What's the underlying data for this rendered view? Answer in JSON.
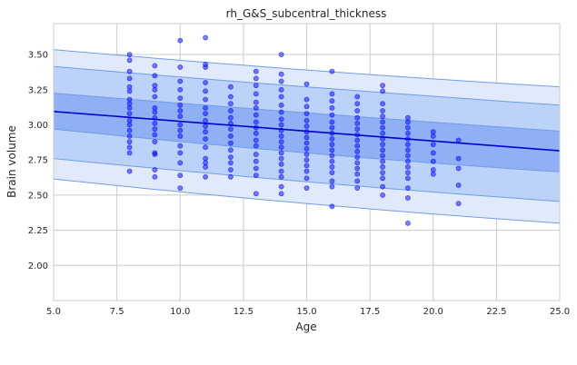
{
  "chart_data": {
    "type": "scatter",
    "title": "rh_G&S_subcentral_thickness",
    "xlabel": "Age",
    "ylabel": "Brain volume",
    "xlim": [
      5.0,
      25.0
    ],
    "ylim": [
      1.75,
      3.72
    ],
    "x_ticks": [
      "5.0",
      "7.5",
      "10.0",
      "12.5",
      "15.0",
      "17.5",
      "20.0",
      "22.5",
      "25.0"
    ],
    "y_ticks": [
      "2.00",
      "2.25",
      "2.50",
      "2.75",
      "3.00",
      "3.25",
      "3.50"
    ],
    "grid": true,
    "colors": {
      "points": "#0000ff",
      "mean_line": "#0000cd",
      "band_inner": "#8fb0f5",
      "band_middle": "#bcd2f8",
      "band_outer": "#e1eafb",
      "band_edge": "#6f9ee6",
      "grid": "#cccccc",
      "frame": "#cccccc"
    },
    "mean_line": {
      "x": [
        5,
        25
      ],
      "y": [
        3.095,
        2.815
      ]
    },
    "bands": [
      {
        "name": "outer",
        "upper": [
          [
            5,
            3.535
          ],
          [
            15,
            3.39
          ],
          [
            25,
            3.27
          ]
        ],
        "lower": [
          [
            5,
            2.615
          ],
          [
            15,
            2.44
          ],
          [
            25,
            2.3
          ]
        ]
      },
      {
        "name": "middle",
        "upper": [
          [
            5,
            3.415
          ],
          [
            15,
            3.27
          ],
          [
            25,
            3.14
          ]
        ],
        "lower": [
          [
            5,
            2.76
          ],
          [
            15,
            2.595
          ],
          [
            25,
            2.455
          ]
        ]
      },
      {
        "name": "inner",
        "upper": [
          [
            5,
            3.225
          ],
          [
            15,
            3.085
          ],
          [
            25,
            2.955
          ]
        ],
        "lower": [
          [
            5,
            2.97
          ],
          [
            15,
            2.8
          ],
          [
            25,
            2.665
          ]
        ]
      }
    ],
    "points": [
      {
        "x": 8,
        "y": 3.5
      },
      {
        "x": 8,
        "y": 3.46
      },
      {
        "x": 8,
        "y": 3.38
      },
      {
        "x": 8,
        "y": 3.33
      },
      {
        "x": 8,
        "y": 3.27
      },
      {
        "x": 8,
        "y": 3.24
      },
      {
        "x": 8,
        "y": 3.18
      },
      {
        "x": 8,
        "y": 3.15
      },
      {
        "x": 8,
        "y": 3.12
      },
      {
        "x": 8,
        "y": 3.08
      },
      {
        "x": 8,
        "y": 3.03
      },
      {
        "x": 8,
        "y": 3.0
      },
      {
        "x": 8,
        "y": 2.96
      },
      {
        "x": 8,
        "y": 2.92
      },
      {
        "x": 8,
        "y": 2.88
      },
      {
        "x": 8,
        "y": 2.84
      },
      {
        "x": 8,
        "y": 2.8
      },
      {
        "x": 8,
        "y": 2.67
      },
      {
        "x": 9,
        "y": 3.42
      },
      {
        "x": 9,
        "y": 3.35
      },
      {
        "x": 9,
        "y": 3.28
      },
      {
        "x": 9,
        "y": 3.25
      },
      {
        "x": 9,
        "y": 3.2
      },
      {
        "x": 9,
        "y": 3.12
      },
      {
        "x": 9,
        "y": 3.09
      },
      {
        "x": 9,
        "y": 3.05
      },
      {
        "x": 9,
        "y": 3.01
      },
      {
        "x": 9,
        "y": 2.97
      },
      {
        "x": 9,
        "y": 2.93
      },
      {
        "x": 9,
        "y": 2.88
      },
      {
        "x": 9,
        "y": 2.8
      },
      {
        "x": 9,
        "y": 2.79
      },
      {
        "x": 9,
        "y": 2.68
      },
      {
        "x": 9,
        "y": 2.63
      },
      {
        "x": 10,
        "y": 3.6
      },
      {
        "x": 10,
        "y": 3.41
      },
      {
        "x": 10,
        "y": 3.31
      },
      {
        "x": 10,
        "y": 3.25
      },
      {
        "x": 10,
        "y": 3.19
      },
      {
        "x": 10,
        "y": 3.14
      },
      {
        "x": 10,
        "y": 3.1
      },
      {
        "x": 10,
        "y": 3.06
      },
      {
        "x": 10,
        "y": 3.0
      },
      {
        "x": 10,
        "y": 2.96
      },
      {
        "x": 10,
        "y": 2.92
      },
      {
        "x": 10,
        "y": 2.85
      },
      {
        "x": 10,
        "y": 2.8
      },
      {
        "x": 10,
        "y": 2.73
      },
      {
        "x": 10,
        "y": 2.64
      },
      {
        "x": 10,
        "y": 2.55
      },
      {
        "x": 11,
        "y": 3.62
      },
      {
        "x": 11,
        "y": 3.43
      },
      {
        "x": 11,
        "y": 3.41
      },
      {
        "x": 11,
        "y": 3.3
      },
      {
        "x": 11,
        "y": 3.24
      },
      {
        "x": 11,
        "y": 3.18
      },
      {
        "x": 11,
        "y": 3.12
      },
      {
        "x": 11,
        "y": 3.08
      },
      {
        "x": 11,
        "y": 3.03
      },
      {
        "x": 11,
        "y": 2.99
      },
      {
        "x": 11,
        "y": 2.95
      },
      {
        "x": 11,
        "y": 2.9
      },
      {
        "x": 11,
        "y": 2.84
      },
      {
        "x": 11,
        "y": 2.76
      },
      {
        "x": 11,
        "y": 2.73
      },
      {
        "x": 11,
        "y": 2.7
      },
      {
        "x": 11,
        "y": 2.63
      },
      {
        "x": 12,
        "y": 3.27
      },
      {
        "x": 12,
        "y": 3.2
      },
      {
        "x": 12,
        "y": 3.15
      },
      {
        "x": 12,
        "y": 3.1
      },
      {
        "x": 12,
        "y": 3.05
      },
      {
        "x": 12,
        "y": 3.01
      },
      {
        "x": 12,
        "y": 2.97
      },
      {
        "x": 12,
        "y": 2.92
      },
      {
        "x": 12,
        "y": 2.87
      },
      {
        "x": 12,
        "y": 2.82
      },
      {
        "x": 12,
        "y": 2.77
      },
      {
        "x": 12,
        "y": 2.73
      },
      {
        "x": 12,
        "y": 2.68
      },
      {
        "x": 12,
        "y": 2.63
      },
      {
        "x": 13,
        "y": 3.38
      },
      {
        "x": 13,
        "y": 3.33
      },
      {
        "x": 13,
        "y": 3.28
      },
      {
        "x": 13,
        "y": 3.22
      },
      {
        "x": 13,
        "y": 3.16
      },
      {
        "x": 13,
        "y": 3.12
      },
      {
        "x": 13,
        "y": 3.07
      },
      {
        "x": 13,
        "y": 3.02
      },
      {
        "x": 13,
        "y": 2.98
      },
      {
        "x": 13,
        "y": 2.94
      },
      {
        "x": 13,
        "y": 2.89
      },
      {
        "x": 13,
        "y": 2.85
      },
      {
        "x": 13,
        "y": 2.79
      },
      {
        "x": 13,
        "y": 2.74
      },
      {
        "x": 13,
        "y": 2.69
      },
      {
        "x": 13,
        "y": 2.64
      },
      {
        "x": 13,
        "y": 2.51
      },
      {
        "x": 14,
        "y": 3.5
      },
      {
        "x": 14,
        "y": 3.36
      },
      {
        "x": 14,
        "y": 3.31
      },
      {
        "x": 14,
        "y": 3.25
      },
      {
        "x": 14,
        "y": 3.2
      },
      {
        "x": 14,
        "y": 3.14
      },
      {
        "x": 14,
        "y": 3.09
      },
      {
        "x": 14,
        "y": 3.04
      },
      {
        "x": 14,
        "y": 3.0
      },
      {
        "x": 14,
        "y": 2.96
      },
      {
        "x": 14,
        "y": 2.92
      },
      {
        "x": 14,
        "y": 2.88
      },
      {
        "x": 14,
        "y": 2.84
      },
      {
        "x": 14,
        "y": 2.8
      },
      {
        "x": 14,
        "y": 2.76
      },
      {
        "x": 14,
        "y": 2.72
      },
      {
        "x": 14,
        "y": 2.67
      },
      {
        "x": 14,
        "y": 2.63
      },
      {
        "x": 14,
        "y": 2.56
      },
      {
        "x": 14,
        "y": 2.51
      },
      {
        "x": 15,
        "y": 3.29
      },
      {
        "x": 15,
        "y": 3.18
      },
      {
        "x": 15,
        "y": 3.13
      },
      {
        "x": 15,
        "y": 3.08
      },
      {
        "x": 15,
        "y": 3.03
      },
      {
        "x": 15,
        "y": 2.99
      },
      {
        "x": 15,
        "y": 2.95
      },
      {
        "x": 15,
        "y": 2.91
      },
      {
        "x": 15,
        "y": 2.87
      },
      {
        "x": 15,
        "y": 2.83
      },
      {
        "x": 15,
        "y": 2.79
      },
      {
        "x": 15,
        "y": 2.75
      },
      {
        "x": 15,
        "y": 2.71
      },
      {
        "x": 15,
        "y": 2.67
      },
      {
        "x": 15,
        "y": 2.62
      },
      {
        "x": 15,
        "y": 2.55
      },
      {
        "x": 16,
        "y": 3.38
      },
      {
        "x": 16,
        "y": 3.22
      },
      {
        "x": 16,
        "y": 3.17
      },
      {
        "x": 16,
        "y": 3.12
      },
      {
        "x": 16,
        "y": 3.07
      },
      {
        "x": 16,
        "y": 3.02
      },
      {
        "x": 16,
        "y": 2.98
      },
      {
        "x": 16,
        "y": 2.94
      },
      {
        "x": 16,
        "y": 2.9
      },
      {
        "x": 16,
        "y": 2.86
      },
      {
        "x": 16,
        "y": 2.82
      },
      {
        "x": 16,
        "y": 2.78
      },
      {
        "x": 16,
        "y": 2.74
      },
      {
        "x": 16,
        "y": 2.7
      },
      {
        "x": 16,
        "y": 2.66
      },
      {
        "x": 16,
        "y": 2.6
      },
      {
        "x": 16,
        "y": 2.56
      },
      {
        "x": 16,
        "y": 2.42
      },
      {
        "x": 17,
        "y": 3.2
      },
      {
        "x": 17,
        "y": 3.15
      },
      {
        "x": 17,
        "y": 3.1
      },
      {
        "x": 17,
        "y": 3.05
      },
      {
        "x": 17,
        "y": 3.01
      },
      {
        "x": 17,
        "y": 2.97
      },
      {
        "x": 17,
        "y": 2.93
      },
      {
        "x": 17,
        "y": 2.89
      },
      {
        "x": 17,
        "y": 2.85
      },
      {
        "x": 17,
        "y": 2.81
      },
      {
        "x": 17,
        "y": 2.77
      },
      {
        "x": 17,
        "y": 2.73
      },
      {
        "x": 17,
        "y": 2.69
      },
      {
        "x": 17,
        "y": 2.65
      },
      {
        "x": 17,
        "y": 2.6
      },
      {
        "x": 17,
        "y": 2.55
      },
      {
        "x": 18,
        "y": 3.28
      },
      {
        "x": 18,
        "y": 3.24
      },
      {
        "x": 18,
        "y": 3.15
      },
      {
        "x": 18,
        "y": 3.1
      },
      {
        "x": 18,
        "y": 3.06
      },
      {
        "x": 18,
        "y": 3.02
      },
      {
        "x": 18,
        "y": 2.98
      },
      {
        "x": 18,
        "y": 2.94
      },
      {
        "x": 18,
        "y": 2.9
      },
      {
        "x": 18,
        "y": 2.86
      },
      {
        "x": 18,
        "y": 2.82
      },
      {
        "x": 18,
        "y": 2.78
      },
      {
        "x": 18,
        "y": 2.74
      },
      {
        "x": 18,
        "y": 2.7
      },
      {
        "x": 18,
        "y": 2.66
      },
      {
        "x": 18,
        "y": 2.62
      },
      {
        "x": 18,
        "y": 2.56
      },
      {
        "x": 18,
        "y": 2.5
      },
      {
        "x": 19,
        "y": 3.05
      },
      {
        "x": 19,
        "y": 3.02
      },
      {
        "x": 19,
        "y": 2.98
      },
      {
        "x": 19,
        "y": 2.94
      },
      {
        "x": 19,
        "y": 2.9
      },
      {
        "x": 19,
        "y": 2.86
      },
      {
        "x": 19,
        "y": 2.82
      },
      {
        "x": 19,
        "y": 2.78
      },
      {
        "x": 19,
        "y": 2.74
      },
      {
        "x": 19,
        "y": 2.7
      },
      {
        "x": 19,
        "y": 2.66
      },
      {
        "x": 19,
        "y": 2.62
      },
      {
        "x": 19,
        "y": 2.55
      },
      {
        "x": 19,
        "y": 2.48
      },
      {
        "x": 19,
        "y": 2.3
      },
      {
        "x": 20,
        "y": 2.95
      },
      {
        "x": 20,
        "y": 2.92
      },
      {
        "x": 20,
        "y": 2.86
      },
      {
        "x": 20,
        "y": 2.8
      },
      {
        "x": 20,
        "y": 2.74
      },
      {
        "x": 20,
        "y": 2.68
      },
      {
        "x": 20,
        "y": 2.65
      },
      {
        "x": 21,
        "y": 2.89
      },
      {
        "x": 21,
        "y": 2.76
      },
      {
        "x": 21,
        "y": 2.69
      },
      {
        "x": 21,
        "y": 2.57
      },
      {
        "x": 21,
        "y": 2.44
      }
    ]
  }
}
